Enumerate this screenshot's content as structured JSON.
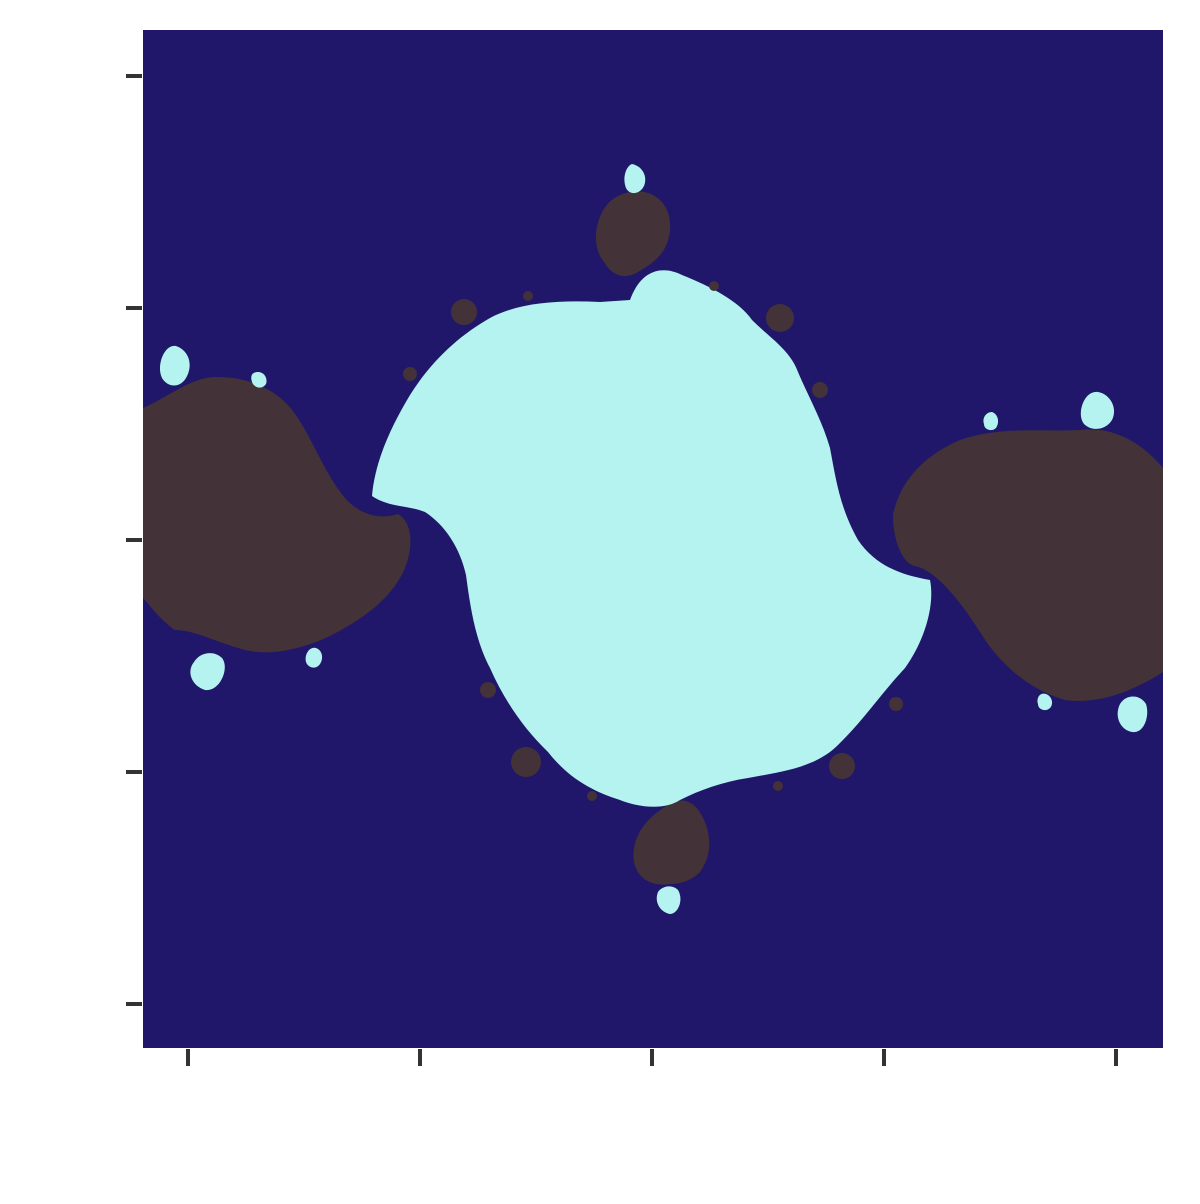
{
  "chart_data": {
    "type": "heatmap",
    "title": "",
    "xlabel": "",
    "ylabel": "",
    "x_ticks": [
      "",
      "",
      "",
      "",
      ""
    ],
    "y_ticks": [
      "",
      "",
      "",
      "",
      ""
    ],
    "grid": false,
    "legend": "none",
    "colors": {
      "background": "#20176a",
      "interior": "#b4f3ef",
      "satellites": "#433238",
      "axis": "#333333"
    }
  }
}
